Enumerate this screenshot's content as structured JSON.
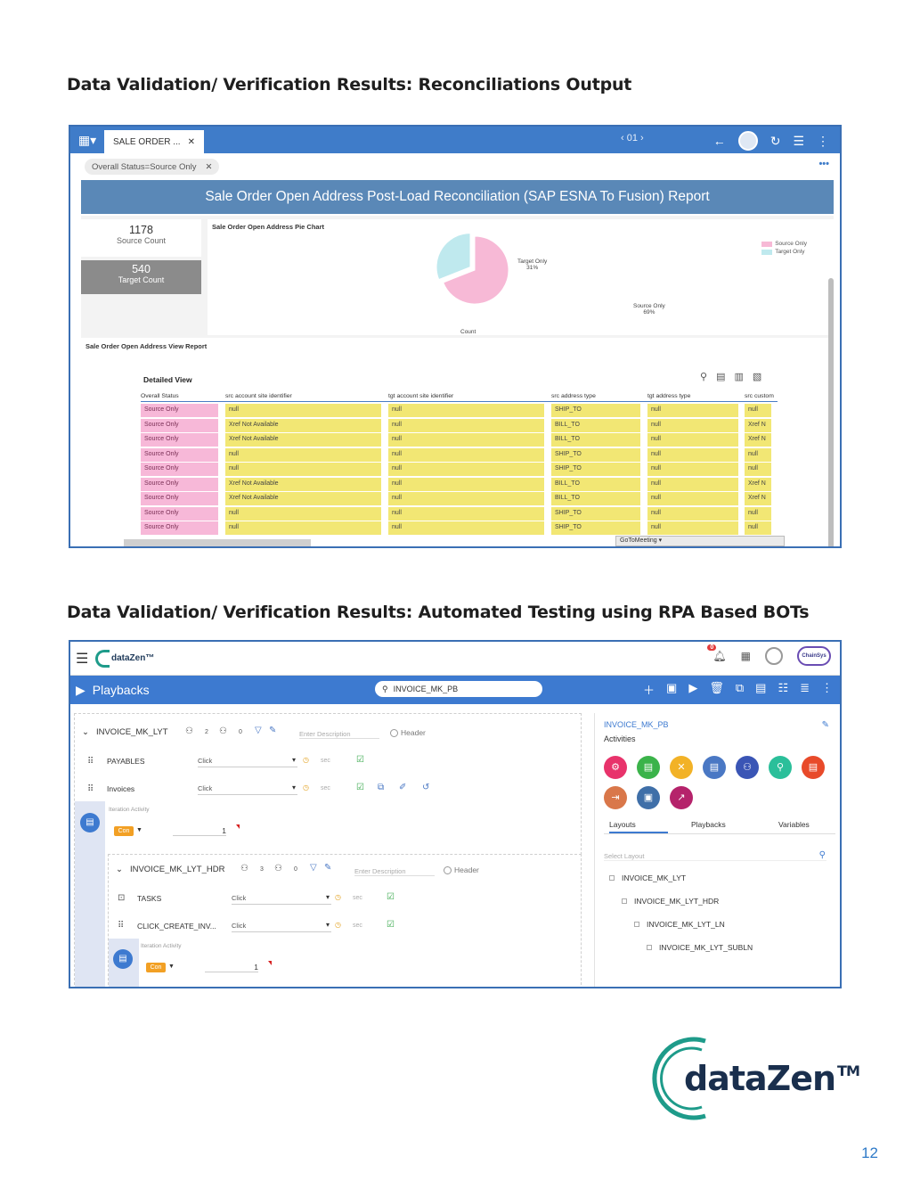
{
  "headings": {
    "h1": "Data Validation/ Verification Results: Reconciliations Output",
    "h2": "Data Validation/ Verification Results: Automated Testing using RPA Based BOTs"
  },
  "shot1": {
    "tab_label": "SALE ORDER ...",
    "page_nav": "01",
    "filter_chip": "Overall Status=Source Only",
    "report_title": "Sale Order Open Address Post-Load Reconciliation (SAP ESNA To Fusion) Report",
    "kpis": [
      {
        "value": "1178",
        "label": "Source Count"
      },
      {
        "value": "540",
        "label": "Target Count"
      }
    ],
    "pie_title": "Sale Order Open Address Pie Chart",
    "pie_axis": "Count",
    "view_title": "Sale Order Open Address View Report",
    "detailed_view": "Detailed View",
    "columns": [
      "Overall Status",
      "src account site identifier",
      "tgt account site identifier",
      "src address type",
      "tgt address type",
      "src custom"
    ],
    "rows": [
      [
        "Source Only",
        "null",
        "null",
        "SHIP_TO",
        "null",
        "null"
      ],
      [
        "Source Only",
        "Xref Not Available",
        "null",
        "BILL_TO",
        "null",
        "Xref N"
      ],
      [
        "Source Only",
        "Xref Not Available",
        "null",
        "BILL_TO",
        "null",
        "Xref N"
      ],
      [
        "Source Only",
        "null",
        "null",
        "SHIP_TO",
        "null",
        "null"
      ],
      [
        "Source Only",
        "null",
        "null",
        "SHIP_TO",
        "null",
        "null"
      ],
      [
        "Source Only",
        "Xref Not Available",
        "null",
        "BILL_TO",
        "null",
        "Xref N"
      ],
      [
        "Source Only",
        "Xref Not Available",
        "null",
        "BILL_TO",
        "null",
        "Xref N"
      ],
      [
        "Source Only",
        "null",
        "null",
        "SHIP_TO",
        "null",
        "null"
      ],
      [
        "Source Only",
        "null",
        "null",
        "SHIP_TO",
        "null",
        "null"
      ]
    ],
    "goto_meeting": "GoToMeeting ▾"
  },
  "chart_data": {
    "type": "pie",
    "title": "Sale Order Open Address Pie Chart",
    "categories": [
      "Source Only",
      "Target Only"
    ],
    "values": [
      69,
      31
    ],
    "value_labels": [
      "Source Only\n69%",
      "Target Only\n31%"
    ],
    "colors": [
      "#f7b9d6",
      "#bfe9ee"
    ],
    "legend_position": "top-right",
    "xlabel": "Count"
  },
  "shot2": {
    "app_name": "dataZen™",
    "notif_count": "0",
    "brand_badge": "ChainSys",
    "section_title": "Playbacks",
    "search_value": "INVOICE_MK_PB",
    "group1": {
      "name": "INVOICE_MK_LYT",
      "count_a": "2",
      "count_b": "0",
      "desc_placeholder": "Enter Description",
      "header_label": "Header",
      "activities": [
        {
          "name": "PAYABLES",
          "action": "Click",
          "sec": "sec"
        },
        {
          "name": "Invoices",
          "action": "Click",
          "sec": "sec"
        }
      ],
      "iteration_label": "Iteration Activity",
      "con": "Con",
      "iter_value": "1"
    },
    "group2": {
      "name": "INVOICE_MK_LYT_HDR",
      "count_a": "3",
      "count_b": "0",
      "desc_placeholder": "Enter Description",
      "header_label": "Header",
      "activities": [
        {
          "name": "TASKS",
          "action": "Click",
          "sec": "sec"
        },
        {
          "name": "CLICK_CREATE_INV...",
          "action": "Click",
          "sec": "sec"
        }
      ],
      "iteration_label": "Iteration Activity",
      "con": "Con",
      "iter_value": "1"
    },
    "right": {
      "title": "INVOICE_MK_PB",
      "activities_label": "Activities",
      "tabs": [
        "Layouts",
        "Playbacks",
        "Variables"
      ],
      "select_placeholder": "Select Layout",
      "tree": [
        "INVOICE_MK_LYT",
        "INVOICE_MK_LYT_HDR",
        "INVOICE_MK_LYT_LN",
        "INVOICE_MK_LYT_SUBLN"
      ],
      "activity_colors": [
        "#e8336b",
        "#3bb34a",
        "#f2b227",
        "#4a78c4",
        "#3a55b5",
        "#2bbf9a",
        "#e84a2a",
        "#d9774a",
        "#3f6fa8",
        "#b5236b"
      ]
    }
  },
  "brand": {
    "name": "dataZen",
    "tm": "TM"
  },
  "page_number": "12"
}
